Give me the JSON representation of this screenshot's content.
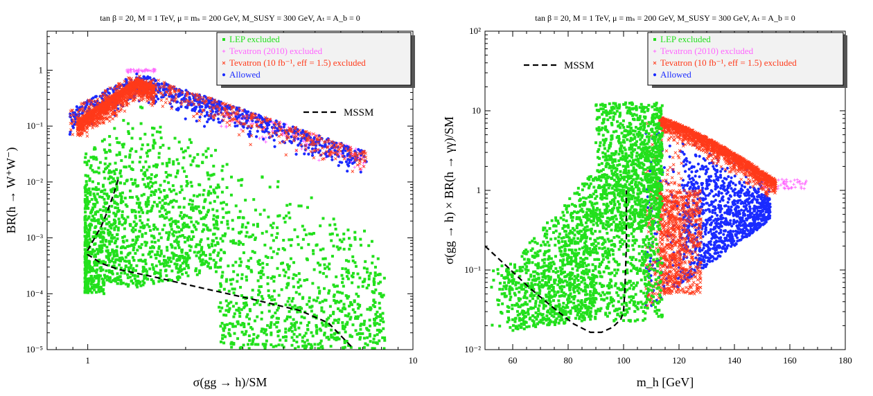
{
  "colors": {
    "lep": "#22e01c",
    "tev2010": "#ff66ff",
    "tev10": "#ff3a1a",
    "allowed": "#1a2bff",
    "mssm": "#000000"
  },
  "legend_labels": [
    "LEP excluded",
    "Tevatron (2010) excluded",
    "Tevatron (10 fb⁻¹, eff = 1.5) excluded",
    "Allowed"
  ],
  "mssm_label": "MSSM",
  "chart_data": [
    {
      "type": "scatter",
      "title": "tan β = 20,  M = 1 TeV,  μ = mₛ = 200 GeV,  M_SUSY = 300 GeV, Aₜ = A_b = 0",
      "xlabel": "σ(gg → h)/SM",
      "ylabel": "BR(h → W⁺W⁻)",
      "xscale": "log",
      "yscale": "log",
      "xlim": [
        0.75,
        10
      ],
      "ylim": [
        1e-05,
        5
      ],
      "x_ticks": [
        "1",
        "10"
      ],
      "y_ticks": [
        "10⁻⁵",
        "10⁻⁴",
        "10⁻³",
        "10⁻²",
        "10⁻¹",
        "1"
      ],
      "legend_position": "top-right",
      "mssm_curve": {
        "x": [
          1.24,
          1.2,
          1.15,
          1.1,
          1.04,
          1.0,
          1.0,
          1.03,
          1.1,
          1.25,
          1.6,
          2.2,
          3.2,
          4.5,
          5.5,
          6.5
        ],
        "y": [
          0.011,
          0.006,
          0.003,
          0.0016,
          0.0009,
          0.0006,
          0.0005,
          0.00045,
          0.00035,
          0.00027,
          0.0002,
          0.00013,
          8e-05,
          5e-05,
          3e-05,
          1.1e-05
        ]
      }
    },
    {
      "type": "scatter",
      "title": "tan β = 20,  M = 1 TeV,  μ = mₛ = 200 GeV,  M_SUSY = 300 GeV, Aₜ = A_b = 0",
      "xlabel": "m_h [GeV]",
      "ylabel": "σ(gg → h) × BR(h → γγ)/SM",
      "xscale": "linear",
      "yscale": "log",
      "xlim": [
        50,
        180
      ],
      "ylim": [
        0.01,
        100
      ],
      "x_ticks": [
        "60",
        "80",
        "100",
        "120",
        "140",
        "160",
        "180"
      ],
      "y_ticks": [
        "10⁻²",
        "10⁻¹",
        "1",
        "10",
        "10²"
      ],
      "legend_position": "top-right",
      "mssm_curve": {
        "x": [
          50,
          58,
          66,
          74,
          82,
          88,
          92,
          96,
          99,
          100,
          100.5,
          101,
          101,
          101
        ],
        "y": [
          0.2,
          0.11,
          0.06,
          0.035,
          0.021,
          0.0165,
          0.0165,
          0.019,
          0.024,
          0.03,
          0.06,
          0.2,
          0.6,
          1.0
        ]
      }
    }
  ]
}
